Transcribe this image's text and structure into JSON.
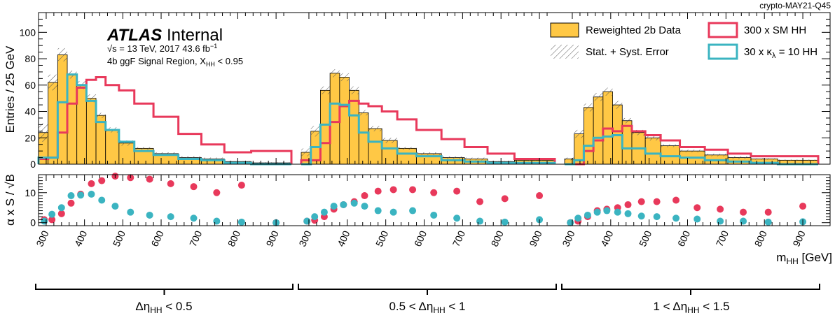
{
  "corner_label": "crypto-MAY21-Q45",
  "atlas": {
    "brand": "ATLAS",
    "status": "Internal",
    "energy": "s = 13 TeV, 2017 43.6 fb",
    "energy_exp": "−1",
    "region": "4b ggF Signal Region, X",
    "region_sub": "HH",
    "region_tail": " < 0.95"
  },
  "legend": {
    "data_label": "Reweighted 2b Data",
    "error_label": "Stat. + Syst. Error",
    "sm_label": "300 x SM HH",
    "kl_label": "30 x κ",
    "kl_sub": "λ",
    "kl_tail": " = 10 HH"
  },
  "axes": {
    "main_ylabel": "Entries / 25 GeV",
    "ratio_ylabel": "α x S / √B",
    "xlabel_main": "m",
    "xlabel_sub": "HH",
    "xlabel_unit": " [GeV]"
  },
  "groups": {
    "g1_label": "Δη",
    "g1_sub": "HH",
    "g1_tail": " < 0.5",
    "g2_pre": "0.5 < Δη",
    "g2_sub": "HH",
    "g2_tail": " < 1",
    "g3_pre": "1 < Δη",
    "g3_sub": "HH",
    "g3_tail": " < 1.5"
  },
  "colors": {
    "data_fill": "#ffc845",
    "sm_line": "#e8395b",
    "kl_line": "#3bb4c1",
    "axis": "#000000"
  },
  "chart_data": {
    "type": "histogram",
    "main_ylim": [
      0,
      115
    ],
    "ratio_ylim": [
      -1,
      16
    ],
    "main_yticks": [
      0,
      20,
      40,
      60,
      80,
      100
    ],
    "ratio_yticks": [
      0,
      10
    ],
    "x_ticks": [
      "300",
      "400",
      "500",
      "600",
      "700",
      "800",
      "900"
    ],
    "panels": [
      {
        "name": "Δη_HH < 0.5",
        "edges": [
          280,
          305,
          330,
          355,
          380,
          405,
          430,
          455,
          490,
          530,
          580,
          645,
          705,
          765,
          835,
          940
        ],
        "data": [
          24,
          62,
          83,
          68,
          60,
          50,
          37,
          26,
          16,
          12,
          8,
          5,
          4,
          2,
          1
        ],
        "error": [
          7,
          6,
          5,
          3,
          3,
          3,
          2,
          2,
          2,
          1,
          1,
          1,
          1,
          0.5,
          0.5
        ],
        "sm": [
          4,
          5,
          24,
          46,
          58,
          64,
          66,
          60,
          56,
          46,
          36,
          23,
          15,
          9,
          10
        ],
        "kl": [
          5,
          5,
          47,
          68,
          60,
          48,
          32,
          26,
          17,
          10,
          7,
          4,
          3,
          1,
          0
        ],
        "ratio_x": [
          295,
          315,
          340,
          365,
          390,
          418,
          445,
          480,
          520,
          570,
          625,
          685,
          745,
          810,
          900
        ],
        "ratio_sm": [
          1,
          1,
          3,
          6.5,
          9.5,
          13,
          14,
          15.5,
          15,
          14.5,
          13,
          12,
          10,
          12.5,
          0
        ],
        "ratio_kl": [
          0.5,
          2.8,
          5,
          9,
          9.2,
          9.5,
          7.5,
          5.5,
          3.5,
          2.5,
          2,
          1.5,
          0.5,
          0.2,
          0
        ]
      },
      {
        "name": "0.5 < Δη_HH < 1",
        "edges": [
          280,
          305,
          330,
          355,
          380,
          405,
          430,
          455,
          490,
          530,
          580,
          645,
          705,
          765,
          835,
          940
        ],
        "data": [
          9,
          25,
          56,
          69,
          66,
          56,
          39,
          27,
          18,
          12,
          8,
          5,
          4,
          2,
          3
        ],
        "error": [
          3,
          4,
          3,
          3,
          3,
          3,
          2,
          2,
          2,
          1,
          1,
          1,
          1,
          0.5,
          0.5
        ],
        "sm": [
          3,
          3,
          16,
          32,
          44,
          48,
          46,
          44,
          40,
          34,
          26,
          19,
          13,
          8,
          4
        ],
        "kl": [
          0,
          13,
          30,
          46,
          45,
          37,
          24,
          17,
          12,
          8,
          6,
          3,
          2,
          1,
          1
        ],
        "ratio_x": [
          295,
          315,
          340,
          365,
          390,
          418,
          445,
          480,
          520,
          570,
          625,
          685,
          745,
          810,
          900
        ],
        "ratio_sm": [
          0.5,
          0.8,
          2,
          4.5,
          6,
          7,
          9,
          10.5,
          11,
          11,
          10,
          10.5,
          7,
          8,
          9
        ],
        "ratio_kl": [
          0.5,
          2,
          3.5,
          5.5,
          6,
          6.5,
          5.5,
          4,
          3.5,
          4,
          2.5,
          1.5,
          0.5,
          0.2,
          1
        ]
      },
      {
        "name": "1 < Δη_HH < 1.5",
        "edges": [
          280,
          305,
          330,
          355,
          380,
          405,
          430,
          455,
          490,
          530,
          580,
          645,
          705,
          765,
          835,
          940
        ],
        "data": [
          4,
          23,
          43,
          51,
          55,
          45,
          33,
          24,
          20,
          14,
          10,
          7,
          5,
          4,
          3
        ],
        "error": [
          1,
          3,
          3,
          3,
          3,
          3,
          2,
          2,
          2,
          1,
          1,
          1,
          1,
          0.5,
          0.5
        ],
        "sm": [
          0,
          0,
          10,
          18,
          27,
          25,
          29,
          25,
          22,
          18,
          13,
          11,
          8,
          6,
          6
        ],
        "kl": [
          0,
          3,
          14,
          20,
          21,
          22,
          12,
          12,
          8,
          6,
          5,
          3,
          2,
          1,
          0
        ],
        "ratio_x": [
          295,
          315,
          340,
          365,
          390,
          418,
          445,
          480,
          520,
          570,
          625,
          685,
          745,
          810,
          900
        ],
        "ratio_sm": [
          0,
          0.5,
          2,
          4,
          4.5,
          5,
          6,
          7,
          7,
          7.5,
          5,
          4.5,
          3.5,
          3.5,
          5.5
        ],
        "ratio_kl": [
          0,
          1.5,
          2.5,
          3.5,
          4,
          3.5,
          3,
          2.2,
          2,
          1.5,
          1.2,
          0.5,
          0.5,
          0.2,
          0.3
        ]
      }
    ]
  }
}
